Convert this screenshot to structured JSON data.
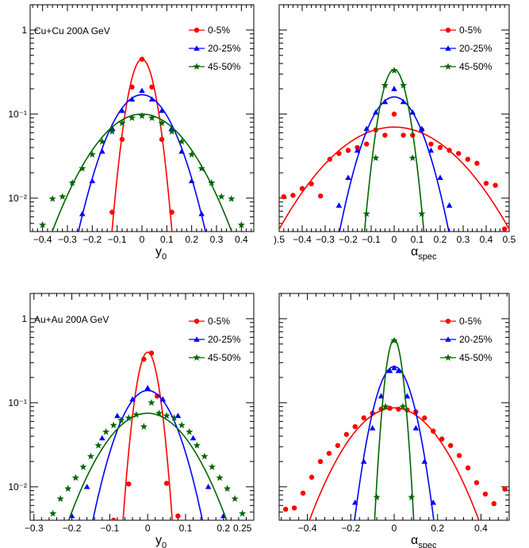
{
  "colors": {
    "red": "#ff0000",
    "blue": "#0000ff",
    "green": "#006600",
    "axis": "#000000"
  },
  "chart_data": [
    {
      "type": "scatter",
      "panel": "top-left",
      "annotation": "Cu+Cu 200A GeV",
      "xlabel": "y",
      "xlabel_sub": "0",
      "ylabel": "",
      "xlim": [
        -0.45,
        0.45
      ],
      "ylim": [
        0.004,
        2
      ],
      "log_y": true,
      "legend_position": "top-right",
      "x_ticks": [
        -0.4,
        -0.3,
        -0.2,
        -0.1,
        0,
        0.1,
        0.2,
        0.3,
        0.4
      ],
      "x_tick_labels": [
        "−0.4",
        "−0.3",
        "−0.2",
        "−0.1",
        "0",
        "0.1",
        "0.2",
        "0.3",
        "0.4"
      ],
      "y_ticks": [
        1,
        0.1,
        0.01
      ],
      "y_tick_labels": [
        "1",
        "10⁻¹",
        "10⁻²"
      ],
      "series": [
        {
          "name": "0-5%",
          "color": "red",
          "marker": "circle",
          "points": [
            [
              -0.12,
              0.0068
            ],
            [
              -0.08,
              0.05
            ],
            [
              -0.04,
              0.21
            ],
            [
              0.0,
              0.45
            ],
            [
              0.04,
              0.21
            ],
            [
              0.08,
              0.05
            ],
            [
              0.12,
              0.0068
            ]
          ],
          "fit": {
            "amp": 0.45,
            "sigma": 0.0393
          }
        },
        {
          "name": "20-25%",
          "color": "blue",
          "marker": "triangle",
          "points": [
            [
              -0.24,
              0.0065
            ],
            [
              -0.2,
              0.016
            ],
            [
              -0.16,
              0.036
            ],
            [
              -0.12,
              0.068
            ],
            [
              -0.08,
              0.11
            ],
            [
              -0.04,
              0.15
            ],
            [
              0.0,
              0.19
            ],
            [
              0.04,
              0.15
            ],
            [
              0.08,
              0.11
            ],
            [
              0.12,
              0.068
            ],
            [
              0.16,
              0.036
            ],
            [
              0.2,
              0.016
            ],
            [
              0.24,
              0.0065
            ]
          ],
          "fit": {
            "amp": 0.17,
            "sigma": 0.0934
          }
        },
        {
          "name": "45-50%",
          "color": "green",
          "marker": "star",
          "points": [
            [
              -0.4,
              0.0048
            ],
            [
              -0.36,
              0.0098
            ],
            [
              -0.32,
              0.0104
            ],
            [
              -0.28,
              0.0152
            ],
            [
              -0.24,
              0.0225
            ],
            [
              -0.2,
              0.033
            ],
            [
              -0.16,
              0.047
            ],
            [
              -0.12,
              0.062
            ],
            [
              -0.08,
              0.078
            ],
            [
              -0.04,
              0.09
            ],
            [
              0.0,
              0.095
            ],
            [
              0.04,
              0.09
            ],
            [
              0.08,
              0.078
            ],
            [
              0.12,
              0.062
            ],
            [
              0.16,
              0.047
            ],
            [
              0.2,
              0.033
            ],
            [
              0.24,
              0.0225
            ],
            [
              0.28,
              0.0152
            ],
            [
              0.32,
              0.0104
            ],
            [
              0.36,
              0.0098
            ],
            [
              0.4,
              0.0048
            ]
          ],
          "fit": {
            "amp": 0.1,
            "sigma": 0.1423
          }
        }
      ]
    },
    {
      "type": "scatter",
      "panel": "top-right",
      "annotation": "",
      "xlabel": "α",
      "xlabel_sub": "spec",
      "ylabel": "",
      "xlim": [
        -0.5,
        0.5
      ],
      "ylim": [
        0.004,
        2
      ],
      "log_y": true,
      "legend_position": "top-right",
      "x_ticks": [
        -0.5,
        -0.4,
        -0.3,
        -0.2,
        -0.1,
        0,
        0.1,
        0.2,
        0.3,
        0.4,
        0.5
      ],
      "x_tick_labels": [
        ").5",
        "−0.4",
        "−0.3",
        "−0.2",
        "−0.1",
        "0",
        "0.1",
        "0.2",
        "0.3",
        "0.4",
        "0.5"
      ],
      "y_ticks": [
        1,
        0.1,
        0.01
      ],
      "y_tick_labels": [
        "",
        "",
        ""
      ],
      "series": [
        {
          "name": "0-5%",
          "color": "red",
          "marker": "circle",
          "points": [
            [
              -0.48,
              0.0104
            ],
            [
              -0.44,
              0.0108
            ],
            [
              -0.4,
              0.013
            ],
            [
              -0.36,
              0.0148
            ],
            [
              -0.32,
              0.0106
            ],
            [
              -0.28,
              0.029
            ],
            [
              -0.24,
              0.034
            ],
            [
              -0.2,
              0.037
            ],
            [
              -0.16,
              0.04
            ],
            [
              -0.12,
              0.044
            ],
            [
              -0.08,
              0.065
            ],
            [
              -0.04,
              0.056
            ],
            [
              0.0,
              0.1
            ],
            [
              0.04,
              0.056
            ],
            [
              0.08,
              0.056
            ],
            [
              0.12,
              0.065
            ],
            [
              0.16,
              0.044
            ],
            [
              0.2,
              0.04
            ],
            [
              0.24,
              0.037
            ],
            [
              0.28,
              0.034
            ],
            [
              0.32,
              0.029
            ],
            [
              0.36,
              0.026
            ],
            [
              0.4,
              0.015
            ],
            [
              0.44,
              0.0142
            ],
            [
              0.48,
              0.0043
            ]
          ],
          "fit": {
            "amp": 0.07,
            "sigma": 0.2115
          }
        },
        {
          "name": "20-25%",
          "color": "blue",
          "marker": "triangle",
          "points": [
            [
              -0.28,
              0.0038
            ],
            [
              -0.24,
              0.0082
            ],
            [
              -0.2,
              0.0175
            ],
            [
              -0.16,
              0.037
            ],
            [
              -0.12,
              0.067
            ],
            [
              -0.08,
              0.105
            ],
            [
              -0.04,
              0.14
            ],
            [
              0.0,
              0.2
            ],
            [
              0.04,
              0.14
            ],
            [
              0.08,
              0.105
            ],
            [
              0.12,
              0.067
            ],
            [
              0.16,
              0.037
            ],
            [
              0.2,
              0.0175
            ],
            [
              0.24,
              0.0082
            ],
            [
              0.28,
              0.0038
            ]
          ],
          "fit": {
            "amp": 0.16,
            "sigma": 0.0875
          }
        },
        {
          "name": "45-50%",
          "color": "green",
          "marker": "star",
          "points": [
            [
              -0.12,
              0.0065
            ],
            [
              -0.08,
              0.03
            ],
            [
              -0.04,
              0.22
            ],
            [
              0.0,
              0.33
            ],
            [
              0.04,
              0.22
            ],
            [
              0.08,
              0.03
            ],
            [
              0.12,
              0.0065
            ]
          ],
          "fit": {
            "amp": 0.34,
            "sigma": 0.0433
          }
        }
      ]
    },
    {
      "type": "scatter",
      "panel": "bottom-left",
      "annotation": "Au+Au 200A GeV",
      "xlabel": "y",
      "xlabel_sub": "0",
      "ylabel": "",
      "xlim": [
        -0.31,
        0.28
      ],
      "ylim": [
        0.004,
        2
      ],
      "log_y": true,
      "legend_position": "top-right",
      "x_ticks": [
        -0.3,
        -0.2,
        -0.1,
        0,
        0.1,
        0.2
      ],
      "x_tick_labels": [
        "−0.3",
        "−0.2",
        "−0.1",
        "0",
        "0.1",
        "0.2"
      ],
      "x_minor_labels": [
        [
          0.25,
          "0.25"
        ]
      ],
      "y_ticks": [
        1,
        0.1,
        0.01
      ],
      "y_tick_labels": [
        "1",
        "10⁻¹",
        "10⁻²"
      ],
      "series": [
        {
          "name": "0-5%",
          "color": "red",
          "marker": "circle",
          "points": [
            [
              -0.09,
              0.004
            ],
            [
              -0.05,
              0.0108
            ],
            [
              -0.01,
              0.33
            ],
            [
              0.01,
              0.39
            ],
            [
              0.025,
              0.12
            ],
            [
              0.05,
              0.011
            ],
            [
              0.08,
              0.0045
            ]
          ],
          "fit": {
            "amp": 0.4,
            "sigma": 0.0214
          }
        },
        {
          "name": "20-25%",
          "color": "blue",
          "marker": "triangle",
          "points": [
            [
              -0.2,
              0.0045
            ],
            [
              -0.16,
              0.01
            ],
            [
              -0.12,
              0.038
            ],
            [
              -0.08,
              0.07
            ],
            [
              -0.04,
              0.11
            ],
            [
              0.0,
              0.15
            ],
            [
              0.04,
              0.11
            ],
            [
              0.08,
              0.07
            ],
            [
              0.12,
              0.038
            ],
            [
              0.16,
              0.01
            ],
            [
              0.2,
              0.0045
            ]
          ],
          "fit": {
            "amp": 0.14,
            "sigma": 0.0542
          }
        },
        {
          "name": "45-50%",
          "color": "green",
          "marker": "star",
          "points": [
            [
              -0.25,
              0.0048
            ],
            [
              -0.23,
              0.0072
            ],
            [
              -0.21,
              0.0095
            ],
            [
              -0.19,
              0.0128
            ],
            [
              -0.17,
              0.0172
            ],
            [
              -0.15,
              0.023
            ],
            [
              -0.13,
              0.031
            ],
            [
              -0.11,
              0.045
            ],
            [
              -0.09,
              0.054
            ],
            [
              -0.07,
              0.062
            ],
            [
              -0.05,
              0.066
            ],
            [
              -0.03,
              0.072
            ],
            [
              -0.01,
              0.052
            ],
            [
              0.01,
              0.1
            ],
            [
              0.03,
              0.075
            ],
            [
              0.05,
              0.07
            ],
            [
              0.07,
              0.066
            ],
            [
              0.09,
              0.054
            ],
            [
              0.11,
              0.045
            ],
            [
              0.13,
              0.031
            ],
            [
              0.15,
              0.023
            ],
            [
              0.17,
              0.0172
            ],
            [
              0.19,
              0.0128
            ],
            [
              0.21,
              0.0095
            ],
            [
              0.23,
              0.0072
            ],
            [
              0.25,
              0.0048
            ]
          ],
          "fit": {
            "amp": 0.075,
            "sigma": 0.086
          }
        }
      ]
    },
    {
      "type": "scatter",
      "panel": "bottom-right",
      "annotation": "",
      "xlabel": "α",
      "xlabel_sub": "spec",
      "ylabel": "",
      "xlim": [
        -0.53,
        0.53
      ],
      "ylim": [
        0.004,
        2
      ],
      "log_y": true,
      "legend_position": "top-right",
      "x_ticks": [
        -0.4,
        -0.2,
        0,
        0.2,
        0.4
      ],
      "x_tick_labels": [
        "−0.4",
        "−0.2",
        "0",
        "0.2",
        "0.4"
      ],
      "y_ticks": [
        1,
        0.1,
        0.01
      ],
      "y_tick_labels": [
        "",
        "",
        ""
      ],
      "series": [
        {
          "name": "0-5%",
          "color": "red",
          "marker": "circle",
          "points": [
            [
              -0.5,
              0.0054
            ],
            [
              -0.46,
              0.0056
            ],
            [
              -0.42,
              0.0084
            ],
            [
              -0.38,
              0.013
            ],
            [
              -0.34,
              0.02
            ],
            [
              -0.3,
              0.025
            ],
            [
              -0.26,
              0.031
            ],
            [
              -0.22,
              0.042
            ],
            [
              -0.18,
              0.052
            ],
            [
              -0.14,
              0.066
            ],
            [
              -0.1,
              0.075
            ],
            [
              -0.06,
              0.084
            ],
            [
              -0.02,
              0.086
            ],
            [
              0.02,
              0.084
            ],
            [
              0.06,
              0.082
            ],
            [
              0.1,
              0.078
            ],
            [
              0.14,
              0.066
            ],
            [
              0.18,
              0.046
            ],
            [
              0.22,
              0.037
            ],
            [
              0.26,
              0.031
            ],
            [
              0.3,
              0.0235
            ],
            [
              0.34,
              0.0168
            ],
            [
              0.38,
              0.0112
            ],
            [
              0.42,
              0.0082
            ],
            [
              0.46,
              0.0063
            ],
            [
              0.51,
              0.0094
            ]
          ],
          "fit": {
            "amp": 0.087,
            "sigma": 0.1573
          }
        },
        {
          "name": "20-25%",
          "color": "blue",
          "marker": "triangle",
          "points": [
            [
              -0.18,
              0.0065
            ],
            [
              -0.14,
              0.02
            ],
            [
              -0.1,
              0.05
            ],
            [
              -0.06,
              0.12
            ],
            [
              -0.02,
              0.24
            ],
            [
              0.0,
              0.26
            ],
            [
              0.02,
              0.24
            ],
            [
              0.06,
              0.12
            ],
            [
              0.1,
              0.05
            ],
            [
              0.14,
              0.02
            ],
            [
              0.18,
              0.0065
            ]
          ],
          "fit": {
            "amp": 0.27,
            "sigma": 0.0629
          }
        },
        {
          "name": "45-50%",
          "color": "green",
          "marker": "star",
          "points": [
            [
              -0.08,
              0.0075
            ],
            [
              -0.04,
              0.09
            ],
            [
              0.0,
              0.55
            ],
            [
              0.04,
              0.09
            ],
            [
              0.08,
              0.0075
            ]
          ],
          "fit": {
            "amp": 0.57,
            "sigma": 0.0286
          }
        }
      ]
    }
  ]
}
